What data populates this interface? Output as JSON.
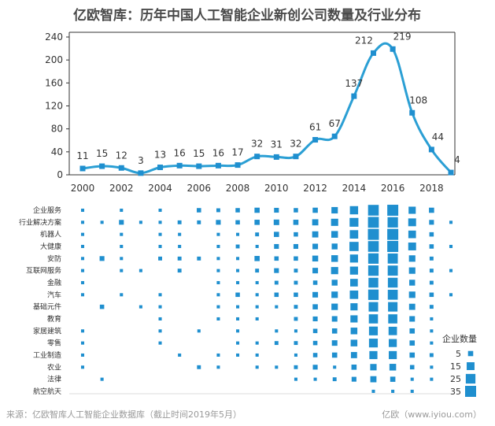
{
  "header": {
    "title": "亿欧智库：历年中国人工智能企业新创公司数量及行业分布"
  },
  "footer": {
    "source": "来源：亿欧智库人工智能企业数据库（截止时间2019年5月）",
    "brand": "亿欧（www.iyiou.com）"
  },
  "colors": {
    "line": "#2b9fd4",
    "dot": "#1f8fcf",
    "title": "#4a4a4a"
  },
  "chart_data": [
    {
      "type": "line",
      "title": "亿欧智库：历年中国人工智能企业新创公司数量及行业分布",
      "x": [
        2000,
        2001,
        2002,
        2003,
        2004,
        2005,
        2006,
        2007,
        2008,
        2009,
        2010,
        2011,
        2012,
        2013,
        2014,
        2015,
        2016,
        2017,
        2018,
        2019
      ],
      "values": [
        11,
        15,
        12,
        3,
        13,
        16,
        15,
        16,
        17,
        32,
        31,
        32,
        61,
        67,
        137,
        212,
        219,
        108,
        44,
        4
      ],
      "x_ticks": [
        "2000",
        "2002",
        "2004",
        "2006",
        "2008",
        "2010",
        "2012",
        "2014",
        "2016",
        "2018"
      ],
      "y_ticks": [
        "0",
        "20",
        "40",
        "60",
        "80",
        "100",
        "120",
        "140",
        "160",
        "180",
        "200",
        "220",
        "240"
      ],
      "ylim": [
        0,
        240
      ],
      "xlabel": "",
      "ylabel": ""
    },
    {
      "type": "scatter",
      "categories": [
        "企业服务",
        "行业解决方案",
        "机器人",
        "大健康",
        "安防",
        "互联网服务",
        "金融",
        "汽车",
        "基础元件",
        "教育",
        "家居建筑",
        "零售",
        "工业制造",
        "农业",
        "法律",
        "航空航天"
      ],
      "years": [
        2000,
        2001,
        2002,
        2003,
        2004,
        2005,
        2006,
        2007,
        2008,
        2009,
        2010,
        2011,
        2012,
        2013,
        2014,
        2015,
        2016,
        2017,
        2018,
        2019
      ],
      "values": [
        [
          1,
          0,
          1,
          0,
          1,
          0,
          3,
          2,
          3,
          5,
          4,
          3,
          5,
          9,
          17,
          32,
          34,
          12,
          5,
          0
        ],
        [
          1,
          1,
          4,
          1,
          1,
          2,
          2,
          4,
          3,
          5,
          6,
          5,
          8,
          12,
          20,
          33,
          30,
          15,
          4,
          1
        ],
        [
          1,
          0,
          1,
          0,
          1,
          1,
          0,
          1,
          1,
          2,
          5,
          3,
          8,
          10,
          18,
          34,
          35,
          14,
          3,
          0
        ],
        [
          1,
          0,
          1,
          0,
          1,
          1,
          0,
          1,
          2,
          1,
          4,
          4,
          6,
          7,
          22,
          32,
          35,
          15,
          3,
          1
        ],
        [
          1,
          4,
          1,
          0,
          2,
          2,
          2,
          1,
          1,
          5,
          3,
          3,
          7,
          10,
          16,
          30,
          28,
          9,
          2,
          0
        ],
        [
          1,
          0,
          1,
          1,
          0,
          2,
          0,
          1,
          1,
          2,
          4,
          2,
          6,
          12,
          16,
          30,
          28,
          9,
          2,
          1
        ],
        [
          1,
          0,
          0,
          0,
          0,
          0,
          0,
          1,
          1,
          1,
          2,
          2,
          3,
          7,
          14,
          26,
          26,
          7,
          2,
          0
        ],
        [
          1,
          0,
          1,
          0,
          1,
          0,
          0,
          1,
          3,
          1,
          3,
          3,
          6,
          9,
          18,
          30,
          27,
          9,
          3,
          1
        ],
        [
          0,
          3,
          0,
          1,
          1,
          0,
          0,
          1,
          1,
          1,
          1,
          2,
          5,
          9,
          12,
          24,
          24,
          8,
          2,
          0
        ],
        [
          0,
          0,
          0,
          0,
          1,
          0,
          0,
          1,
          1,
          1,
          0,
          2,
          4,
          6,
          12,
          22,
          22,
          6,
          1,
          0
        ],
        [
          1,
          0,
          0,
          0,
          1,
          0,
          1,
          0,
          1,
          0,
          1,
          1,
          3,
          5,
          10,
          20,
          18,
          5,
          1,
          0
        ],
        [
          1,
          0,
          0,
          0,
          1,
          0,
          0,
          0,
          1,
          1,
          2,
          2,
          3,
          6,
          10,
          20,
          16,
          5,
          1,
          0
        ],
        [
          1,
          0,
          0,
          0,
          0,
          1,
          0,
          1,
          1,
          1,
          0,
          1,
          3,
          5,
          8,
          16,
          16,
          5,
          2,
          0
        ],
        [
          1,
          0,
          0,
          0,
          0,
          0,
          2,
          1,
          0,
          1,
          1,
          2,
          4,
          1,
          5,
          9,
          10,
          3,
          1,
          0
        ],
        [
          0,
          1,
          0,
          0,
          0,
          0,
          0,
          0,
          0,
          0,
          0,
          1,
          1,
          2,
          4,
          8,
          5,
          1,
          1,
          0
        ],
        [
          0,
          0,
          0,
          0,
          0,
          0,
          0,
          0,
          0,
          0,
          0,
          0,
          0,
          0,
          0,
          1,
          1,
          1,
          0,
          0
        ]
      ]
    }
  ],
  "legend": {
    "title": "企业数量",
    "items": [
      {
        "label": "5",
        "value": 5
      },
      {
        "label": "15",
        "value": 15
      },
      {
        "label": "25",
        "value": 25
      },
      {
        "label": "35",
        "value": 35
      }
    ]
  }
}
